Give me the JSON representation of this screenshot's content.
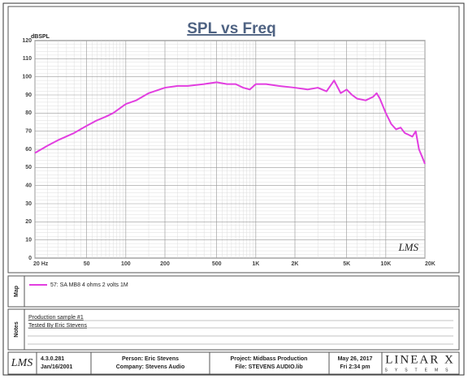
{
  "chart_data": {
    "type": "line",
    "title": "SPL vs Freq",
    "y_label": "dBSPL",
    "log_x": true,
    "grid": true,
    "xlim": [
      20,
      20000
    ],
    "ylim": [
      0,
      120
    ],
    "xticks": [
      {
        "value": 20,
        "label": "20 Hz"
      },
      50,
      100,
      200,
      500,
      {
        "value": 1000,
        "label": "1K"
      },
      {
        "value": 2000,
        "label": "2K"
      },
      {
        "value": 5000,
        "label": "5K"
      },
      {
        "value": 10000,
        "label": "10K"
      },
      {
        "value": 20000,
        "label": "20K"
      }
    ],
    "yticks": [
      0,
      10,
      20,
      30,
      40,
      50,
      60,
      70,
      80,
      90,
      100,
      110,
      120
    ],
    "x": [
      20,
      25,
      30,
      40,
      50,
      60,
      70,
      80,
      100,
      120,
      150,
      200,
      250,
      300,
      400,
      500,
      600,
      700,
      800,
      900,
      1000,
      1200,
      1500,
      2000,
      2500,
      3000,
      3500,
      4000,
      4500,
      5000,
      5500,
      6000,
      7000,
      8000,
      8500,
      9000,
      10000,
      11000,
      12000,
      13000,
      14000,
      15000,
      16000,
      17000,
      18000,
      19000,
      20000
    ],
    "series": [
      {
        "name": "57: SA MB8 4 ohms 2 volts 1M",
        "color": "#e23ee0",
        "values": [
          58,
          62,
          65,
          69,
          73,
          76,
          78,
          80,
          85,
          87,
          91,
          94,
          95,
          95,
          96,
          97,
          96,
          96,
          94,
          93,
          96,
          96,
          95,
          94,
          93,
          94,
          92,
          98,
          91,
          93,
          90,
          88,
          87,
          89,
          91,
          88,
          80,
          74,
          71,
          72,
          69,
          68,
          67,
          70,
          60,
          56,
          52
        ]
      }
    ]
  },
  "plot_logo": "LMS",
  "map_label": "Map",
  "notes_label": "Notes",
  "notes": [
    "Production sample #1",
    "Tested By Eric Stevens"
  ],
  "footer": {
    "logo": "LMS",
    "version": "4.3.0.281",
    "version_date": "Jan/16/2001",
    "person": "Person: Eric Stevens",
    "company": "Company: Stevens Audio",
    "project": "Project: Midbass  Production",
    "file": "File: STEVENS AUDIO.lib",
    "date": "May 26, 2017",
    "time": "Fri  2:34 pm",
    "brand": "LINEAR X",
    "brand_sub": "SYSTEMS"
  }
}
